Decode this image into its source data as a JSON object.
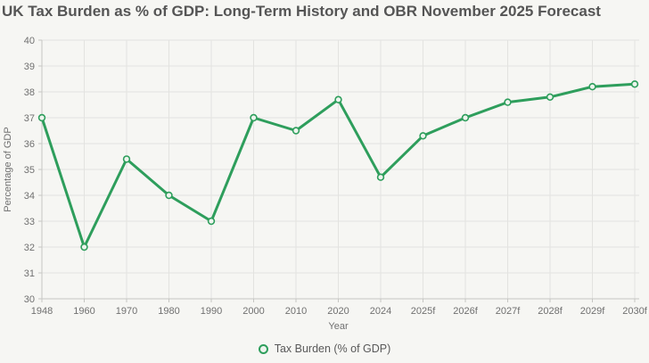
{
  "title": "UK Tax Burden as % of GDP: Long-Term History and OBR November 2025 Forecast",
  "chart_data": {
    "type": "line",
    "title": "UK Tax Burden as % of GDP: Long-Term History and OBR November 2025 Forecast",
    "categories": [
      "1948",
      "1960",
      "1970",
      "1980",
      "1990",
      "2000",
      "2010",
      "2020",
      "2024",
      "2025f",
      "2026f",
      "2027f",
      "2028f",
      "2029f",
      "2030f"
    ],
    "series": [
      {
        "name": "Tax Burden (% of GDP)",
        "values": [
          37.0,
          32.0,
          35.4,
          34.0,
          33.0,
          37.0,
          36.5,
          37.7,
          34.7,
          36.3,
          37.0,
          37.6,
          37.8,
          38.2,
          38.3
        ]
      }
    ],
    "xlabel": "Year",
    "ylabel": "Percentage of GDP",
    "ylim": [
      30,
      40
    ],
    "yticks": [
      30,
      31,
      32,
      33,
      34,
      35,
      36,
      37,
      38,
      39,
      40
    ],
    "grid": true,
    "legend_position": "bottom"
  },
  "legend": {
    "marker_icon": "open-circle-icon",
    "label": "Tax Burden (% of GDP)"
  },
  "colors": {
    "background": "#f6f6f3",
    "line": "#2e9e5c",
    "marker_fill": "#eef4ee",
    "grid": "#e3e3e0",
    "axis": "#c6c6c3",
    "tick_text": "#707070",
    "title_text": "#555555"
  }
}
